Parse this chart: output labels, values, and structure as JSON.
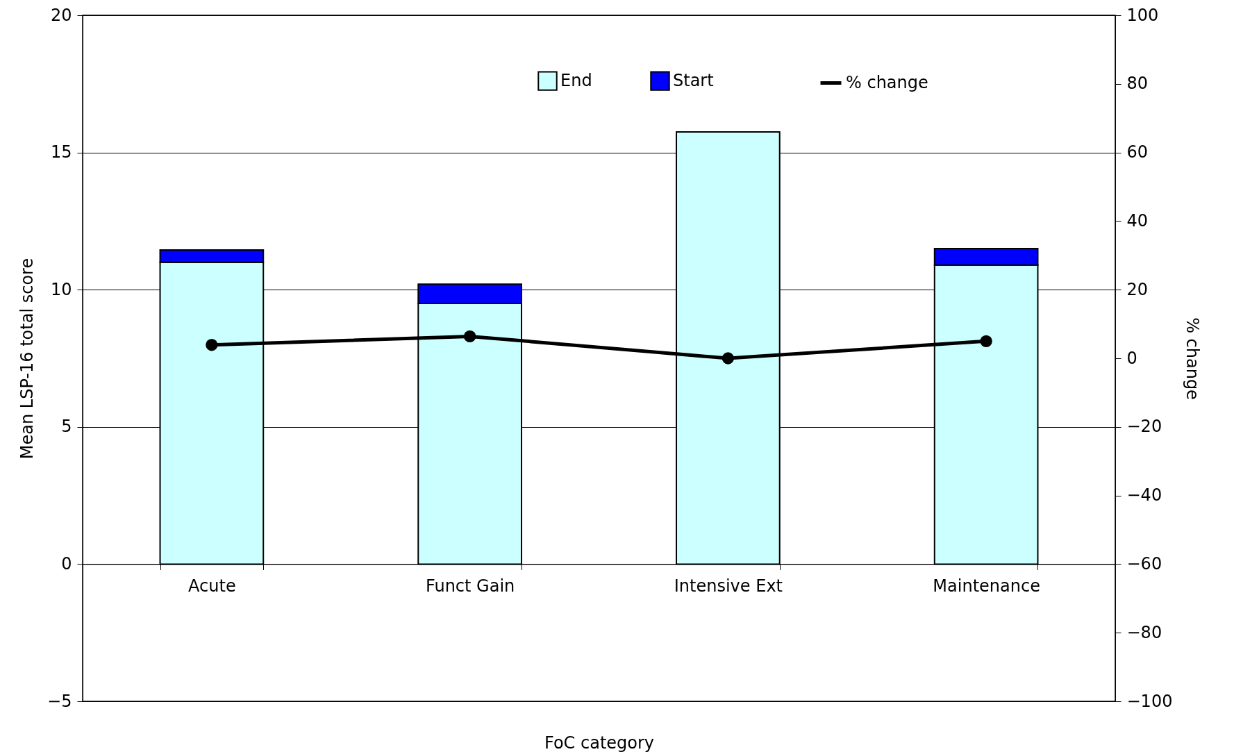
{
  "chart_data": {
    "type": "bar",
    "stacked": true,
    "xlabel": "FoC category",
    "ylabel": "Mean LSP-16 total score",
    "y2label": "% change",
    "categories": [
      "Acute",
      "Funct Gain",
      "Intensive Ext",
      "Maintenance"
    ],
    "series": [
      {
        "name": "End",
        "color": "#ccffff",
        "values": [
          11.0,
          9.5,
          15.75,
          10.9
        ]
      },
      {
        "name": "Start",
        "color": "#0000ff",
        "values": [
          0.45,
          0.7,
          null,
          0.6
        ]
      },
      {
        "name": "% change",
        "type": "line",
        "axis": "y2",
        "color": "#000000",
        "values": [
          3.9,
          6.4,
          0,
          5.0
        ]
      }
    ],
    "ylim": [
      -5,
      20
    ],
    "yticks": [
      -5,
      0,
      5,
      10,
      15,
      20
    ],
    "y2lim": [
      -100,
      100
    ],
    "y2ticks": [
      -100,
      -80,
      -60,
      -40,
      -20,
      0,
      20,
      40,
      60,
      80,
      100
    ],
    "grid": "y",
    "legend": "top",
    "marker": "circle",
    "line_style": "solid"
  }
}
